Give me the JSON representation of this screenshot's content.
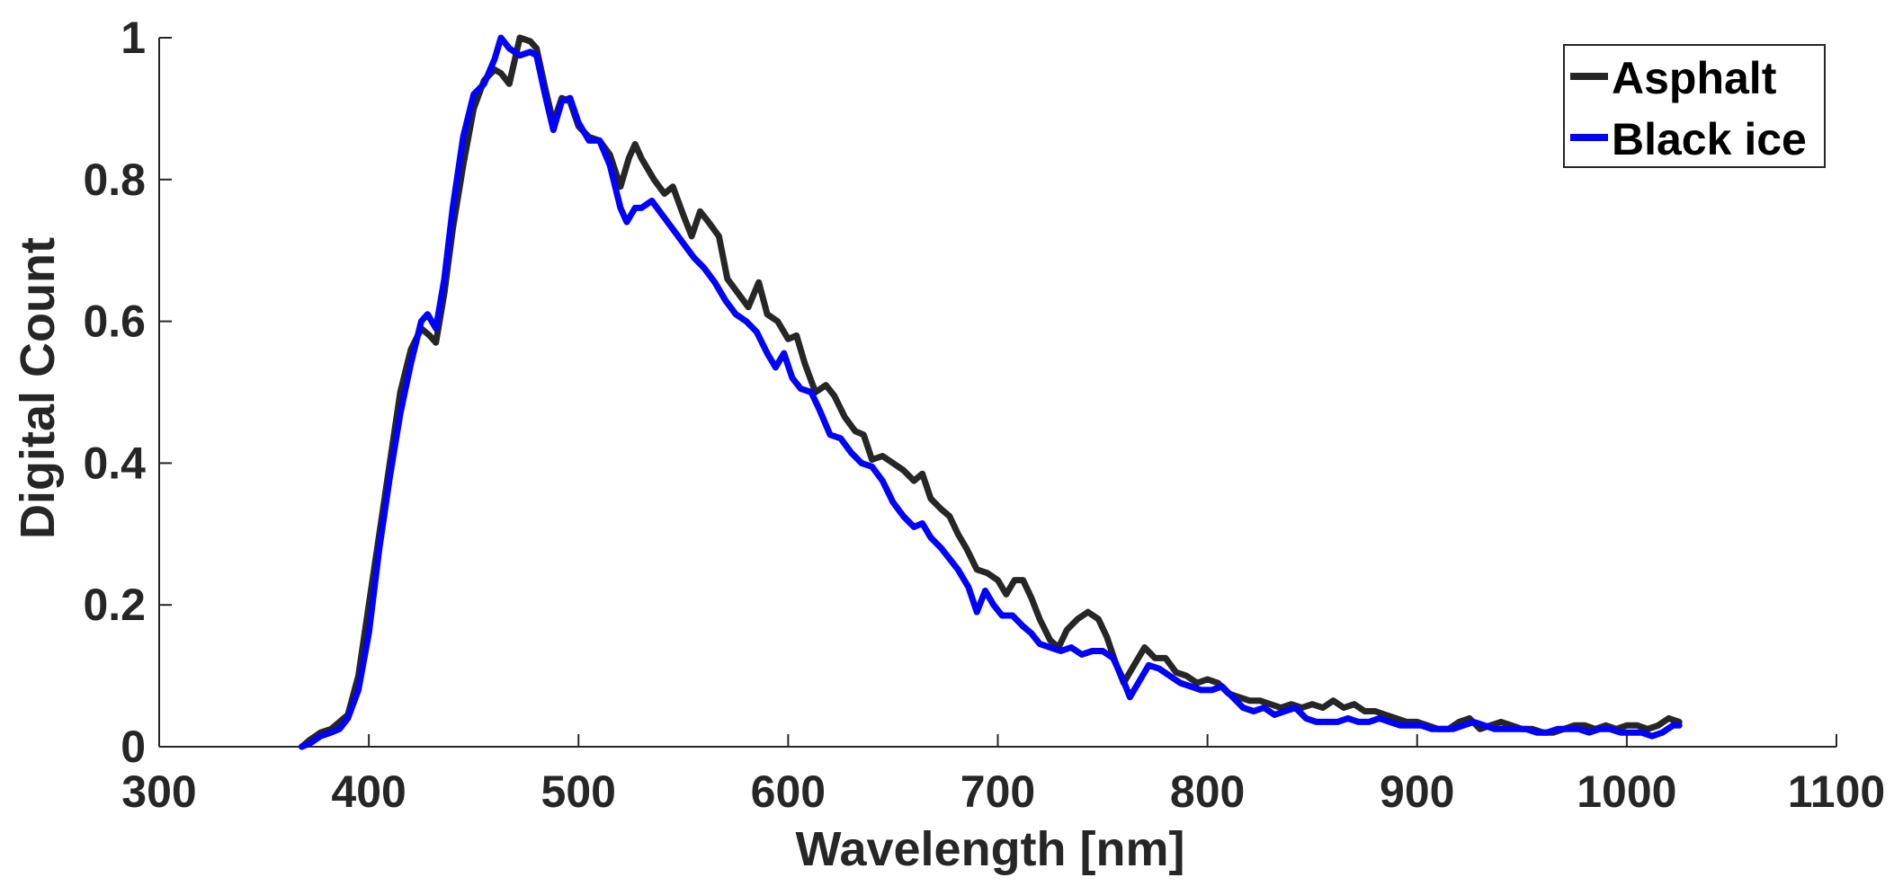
{
  "chart_data": {
    "type": "line",
    "title": "",
    "xlabel": "Wavelength [nm]",
    "ylabel": "Digital Count",
    "xlim": [
      300,
      1100
    ],
    "ylim": [
      0,
      1
    ],
    "xticks": [
      300,
      400,
      500,
      600,
      700,
      800,
      900,
      1000,
      1100
    ],
    "yticks": [
      0,
      0.2,
      0.4,
      0.6,
      0.8,
      1
    ],
    "xtick_labels": [
      "300",
      "400",
      "500",
      "600",
      "700",
      "800",
      "900",
      "1000",
      "1100"
    ],
    "ytick_labels": [
      "0",
      "0.2",
      "0.4",
      "0.6",
      "0.8",
      "1"
    ],
    "grid": false,
    "legend_position": "top-right",
    "series": [
      {
        "name": "Asphalt",
        "color": "#262626",
        "points": [
          [
            368,
            0
          ],
          [
            372,
            0.01
          ],
          [
            377,
            0.02
          ],
          [
            382,
            0.025
          ],
          [
            386,
            0.035
          ],
          [
            390,
            0.045
          ],
          [
            395,
            0.1
          ],
          [
            400,
            0.2
          ],
          [
            405,
            0.3
          ],
          [
            410,
            0.4
          ],
          [
            415,
            0.5
          ],
          [
            420,
            0.56
          ],
          [
            425,
            0.59
          ],
          [
            429,
            0.58
          ],
          [
            432,
            0.57
          ],
          [
            436,
            0.64
          ],
          [
            440,
            0.73
          ],
          [
            445,
            0.82
          ],
          [
            450,
            0.9
          ],
          [
            455,
            0.94
          ],
          [
            460,
            0.955
          ],
          [
            463,
            0.95
          ],
          [
            467,
            0.935
          ],
          [
            472,
            1.0
          ],
          [
            477,
            0.995
          ],
          [
            480,
            0.985
          ],
          [
            484,
            0.93
          ],
          [
            488,
            0.88
          ],
          [
            492,
            0.915
          ],
          [
            496,
            0.91
          ],
          [
            500,
            0.875
          ],
          [
            505,
            0.86
          ],
          [
            510,
            0.855
          ],
          [
            515,
            0.835
          ],
          [
            520,
            0.79
          ],
          [
            524,
            0.83
          ],
          [
            527,
            0.85
          ],
          [
            530,
            0.83
          ],
          [
            536,
            0.8
          ],
          [
            541,
            0.78
          ],
          [
            545,
            0.79
          ],
          [
            550,
            0.75
          ],
          [
            554,
            0.72
          ],
          [
            558,
            0.755
          ],
          [
            562,
            0.74
          ],
          [
            567,
            0.72
          ],
          [
            571,
            0.66
          ],
          [
            576,
            0.64
          ],
          [
            581,
            0.62
          ],
          [
            586,
            0.655
          ],
          [
            590,
            0.61
          ],
          [
            595,
            0.6
          ],
          [
            600,
            0.575
          ],
          [
            604,
            0.58
          ],
          [
            608,
            0.54
          ],
          [
            613,
            0.5
          ],
          [
            618,
            0.51
          ],
          [
            622,
            0.495
          ],
          [
            627,
            0.465
          ],
          [
            632,
            0.445
          ],
          [
            636,
            0.44
          ],
          [
            640,
            0.405
          ],
          [
            645,
            0.41
          ],
          [
            650,
            0.4
          ],
          [
            655,
            0.39
          ],
          [
            660,
            0.375
          ],
          [
            664,
            0.385
          ],
          [
            668,
            0.35
          ],
          [
            673,
            0.335
          ],
          [
            677,
            0.325
          ],
          [
            681,
            0.3
          ],
          [
            685,
            0.28
          ],
          [
            690,
            0.25
          ],
          [
            695,
            0.245
          ],
          [
            700,
            0.235
          ],
          [
            704,
            0.215
          ],
          [
            708,
            0.235
          ],
          [
            712,
            0.235
          ],
          [
            716,
            0.21
          ],
          [
            720,
            0.18
          ],
          [
            725,
            0.15
          ],
          [
            729,
            0.14
          ],
          [
            733,
            0.165
          ],
          [
            738,
            0.18
          ],
          [
            743,
            0.19
          ],
          [
            748,
            0.18
          ],
          [
            752,
            0.155
          ],
          [
            756,
            0.12
          ],
          [
            760,
            0.09
          ],
          [
            765,
            0.115
          ],
          [
            770,
            0.14
          ],
          [
            775,
            0.125
          ],
          [
            780,
            0.125
          ],
          [
            785,
            0.105
          ],
          [
            790,
            0.1
          ],
          [
            795,
            0.09
          ],
          [
            800,
            0.095
          ],
          [
            805,
            0.09
          ],
          [
            810,
            0.075
          ],
          [
            815,
            0.07
          ],
          [
            820,
            0.065
          ],
          [
            825,
            0.065
          ],
          [
            830,
            0.06
          ],
          [
            835,
            0.055
          ],
          [
            840,
            0.06
          ],
          [
            845,
            0.055
          ],
          [
            850,
            0.06
          ],
          [
            855,
            0.055
          ],
          [
            860,
            0.065
          ],
          [
            865,
            0.055
          ],
          [
            870,
            0.06
          ],
          [
            875,
            0.05
          ],
          [
            880,
            0.05
          ],
          [
            885,
            0.045
          ],
          [
            890,
            0.04
          ],
          [
            895,
            0.035
          ],
          [
            900,
            0.035
          ],
          [
            905,
            0.03
          ],
          [
            910,
            0.025
          ],
          [
            915,
            0.025
          ],
          [
            920,
            0.035
          ],
          [
            925,
            0.04
          ],
          [
            930,
            0.025
          ],
          [
            935,
            0.03
          ],
          [
            940,
            0.035
          ],
          [
            945,
            0.03
          ],
          [
            950,
            0.025
          ],
          [
            955,
            0.025
          ],
          [
            960,
            0.02
          ],
          [
            965,
            0.02
          ],
          [
            970,
            0.025
          ],
          [
            975,
            0.03
          ],
          [
            980,
            0.03
          ],
          [
            985,
            0.025
          ],
          [
            990,
            0.03
          ],
          [
            995,
            0.025
          ],
          [
            1000,
            0.03
          ],
          [
            1005,
            0.03
          ],
          [
            1010,
            0.025
          ],
          [
            1015,
            0.03
          ],
          [
            1020,
            0.04
          ],
          [
            1025,
            0.035
          ]
        ]
      },
      {
        "name": "Black ice",
        "color": "#0000ff",
        "points": [
          [
            368,
            0
          ],
          [
            372,
            0.005
          ],
          [
            377,
            0.015
          ],
          [
            382,
            0.02
          ],
          [
            386,
            0.025
          ],
          [
            390,
            0.04
          ],
          [
            395,
            0.08
          ],
          [
            400,
            0.16
          ],
          [
            405,
            0.28
          ],
          [
            410,
            0.38
          ],
          [
            415,
            0.47
          ],
          [
            420,
            0.54
          ],
          [
            425,
            0.6
          ],
          [
            428,
            0.61
          ],
          [
            432,
            0.59
          ],
          [
            436,
            0.66
          ],
          [
            440,
            0.76
          ],
          [
            445,
            0.86
          ],
          [
            450,
            0.92
          ],
          [
            455,
            0.935
          ],
          [
            460,
            0.97
          ],
          [
            463,
            1.0
          ],
          [
            467,
            0.985
          ],
          [
            472,
            0.975
          ],
          [
            477,
            0.98
          ],
          [
            480,
            0.975
          ],
          [
            484,
            0.92
          ],
          [
            488,
            0.87
          ],
          [
            492,
            0.91
          ],
          [
            496,
            0.915
          ],
          [
            500,
            0.88
          ],
          [
            505,
            0.855
          ],
          [
            510,
            0.855
          ],
          [
            515,
            0.82
          ],
          [
            520,
            0.76
          ],
          [
            523,
            0.74
          ],
          [
            527,
            0.76
          ],
          [
            530,
            0.76
          ],
          [
            535,
            0.77
          ],
          [
            540,
            0.75
          ],
          [
            545,
            0.73
          ],
          [
            550,
            0.71
          ],
          [
            555,
            0.69
          ],
          [
            560,
            0.675
          ],
          [
            565,
            0.655
          ],
          [
            570,
            0.63
          ],
          [
            575,
            0.61
          ],
          [
            580,
            0.6
          ],
          [
            585,
            0.585
          ],
          [
            590,
            0.555
          ],
          [
            594,
            0.535
          ],
          [
            598,
            0.555
          ],
          [
            602,
            0.52
          ],
          [
            606,
            0.505
          ],
          [
            611,
            0.5
          ],
          [
            615,
            0.475
          ],
          [
            620,
            0.44
          ],
          [
            625,
            0.435
          ],
          [
            630,
            0.415
          ],
          [
            635,
            0.4
          ],
          [
            640,
            0.395
          ],
          [
            645,
            0.375
          ],
          [
            650,
            0.345
          ],
          [
            655,
            0.325
          ],
          [
            660,
            0.31
          ],
          [
            664,
            0.315
          ],
          [
            668,
            0.295
          ],
          [
            673,
            0.28
          ],
          [
            677,
            0.265
          ],
          [
            681,
            0.25
          ],
          [
            686,
            0.225
          ],
          [
            690,
            0.19
          ],
          [
            694,
            0.22
          ],
          [
            698,
            0.2
          ],
          [
            702,
            0.185
          ],
          [
            707,
            0.185
          ],
          [
            712,
            0.17
          ],
          [
            716,
            0.16
          ],
          [
            720,
            0.145
          ],
          [
            725,
            0.14
          ],
          [
            730,
            0.135
          ],
          [
            735,
            0.14
          ],
          [
            740,
            0.13
          ],
          [
            745,
            0.135
          ],
          [
            750,
            0.135
          ],
          [
            755,
            0.125
          ],
          [
            759,
            0.1
          ],
          [
            763,
            0.07
          ],
          [
            767,
            0.09
          ],
          [
            772,
            0.115
          ],
          [
            777,
            0.11
          ],
          [
            782,
            0.1
          ],
          [
            787,
            0.09
          ],
          [
            792,
            0.085
          ],
          [
            797,
            0.08
          ],
          [
            802,
            0.08
          ],
          [
            807,
            0.085
          ],
          [
            812,
            0.07
          ],
          [
            817,
            0.055
          ],
          [
            822,
            0.05
          ],
          [
            827,
            0.055
          ],
          [
            832,
            0.045
          ],
          [
            837,
            0.05
          ],
          [
            842,
            0.055
          ],
          [
            847,
            0.04
          ],
          [
            852,
            0.035
          ],
          [
            857,
            0.035
          ],
          [
            862,
            0.035
          ],
          [
            867,
            0.04
          ],
          [
            872,
            0.035
          ],
          [
            877,
            0.035
          ],
          [
            882,
            0.04
          ],
          [
            887,
            0.035
          ],
          [
            892,
            0.03
          ],
          [
            897,
            0.03
          ],
          [
            902,
            0.03
          ],
          [
            907,
            0.025
          ],
          [
            912,
            0.025
          ],
          [
            917,
            0.025
          ],
          [
            922,
            0.03
          ],
          [
            927,
            0.035
          ],
          [
            932,
            0.03
          ],
          [
            937,
            0.025
          ],
          [
            942,
            0.025
          ],
          [
            947,
            0.025
          ],
          [
            952,
            0.025
          ],
          [
            957,
            0.02
          ],
          [
            962,
            0.02
          ],
          [
            967,
            0.025
          ],
          [
            972,
            0.025
          ],
          [
            977,
            0.025
          ],
          [
            982,
            0.02
          ],
          [
            987,
            0.025
          ],
          [
            992,
            0.025
          ],
          [
            997,
            0.02
          ],
          [
            1002,
            0.02
          ],
          [
            1007,
            0.02
          ],
          [
            1012,
            0.015
          ],
          [
            1017,
            0.02
          ],
          [
            1022,
            0.03
          ],
          [
            1025,
            0.03
          ]
        ]
      }
    ]
  }
}
